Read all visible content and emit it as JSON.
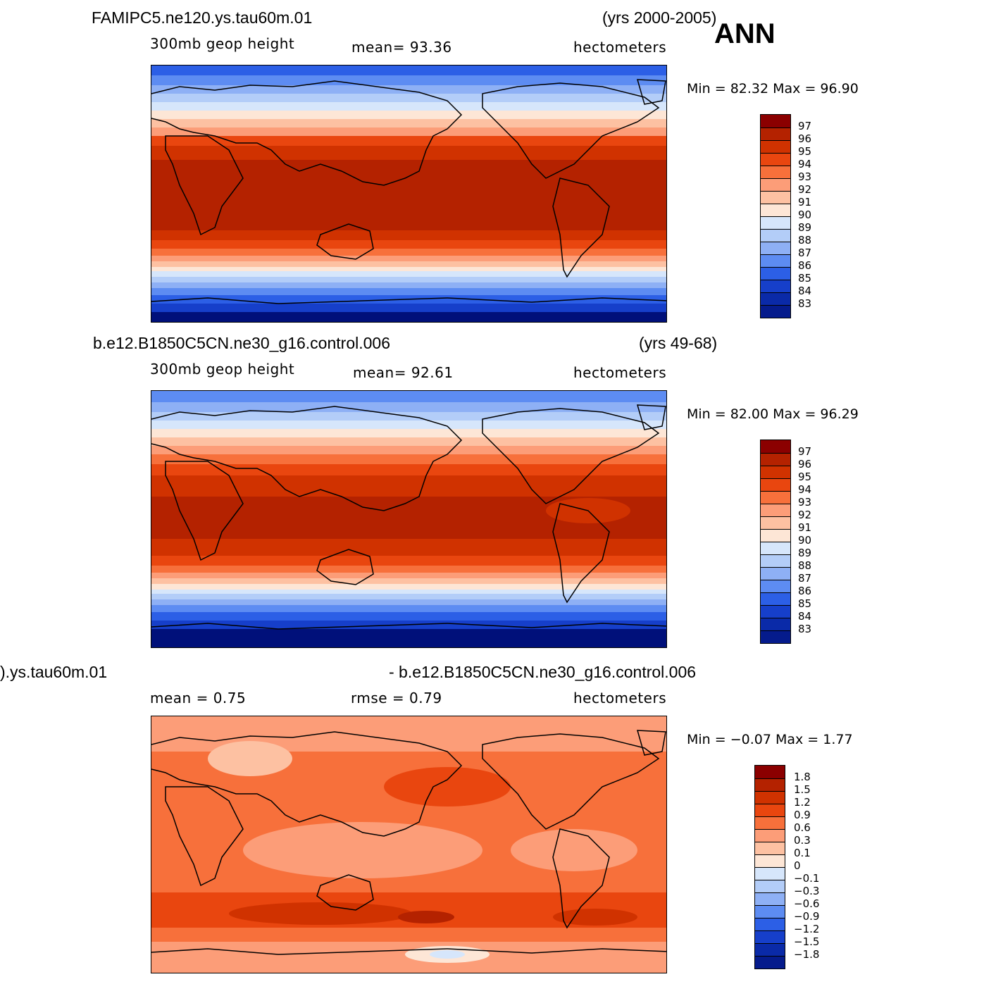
{
  "season": "ANN",
  "panels": [
    {
      "case": "FAMIPC5.ne120.ys.tau60m.01",
      "years": "(yrs 2000-2005)",
      "variable": "300mb  geop  height",
      "mean_label": "mean=   93.36",
      "units": "hectometers",
      "minmax": "Min =   82.32  Max =   96.90",
      "colorbar_labels": [
        "97",
        "96",
        "95",
        "94",
        "93",
        "92",
        "91",
        "90",
        "89",
        "88",
        "87",
        "86",
        "85",
        "84",
        "83"
      ]
    },
    {
      "case": "b.e12.B1850C5CN.ne30_g16.control.006",
      "years": "(yrs 49-68)",
      "variable": "300mb  geop  height",
      "mean_label": "mean=   92.61",
      "units": "hectometers",
      "minmax": "Min =   82.00  Max =   96.29",
      "colorbar_labels": [
        "97",
        "96",
        "95",
        "94",
        "93",
        "92",
        "91",
        "90",
        "89",
        "88",
        "87",
        "86",
        "85",
        "84",
        "83"
      ]
    },
    {
      "case_left": ").ys.tau60m.01",
      "case_right": "- b.e12.B1850C5CN.ne30_g16.control.006",
      "mean_label": "mean =     0.75",
      "rmse_label": "rmse =     0.79",
      "units": "hectometers",
      "minmax": "Min =   −0.07  Max =     1.77",
      "colorbar_labels": [
        "1.8",
        "1.5",
        "1.2",
        "0.9",
        "0.6",
        "0.3",
        "0.1",
        "0",
        "−0.1",
        "−0.3",
        "−0.6",
        "−0.9",
        "−1.2",
        "−1.5",
        "−1.8"
      ]
    }
  ],
  "colors": {
    "scale": [
      "#8b0000",
      "#b42200",
      "#d03200",
      "#e9460f",
      "#f7703b",
      "#fc9d78",
      "#fdc1a2",
      "#fde6d6",
      "#d6e6fb",
      "#b3cdf8",
      "#8eb0f5",
      "#5d8cf2",
      "#2c5fe6",
      "#163fca",
      "#0a2aa8",
      "#051b8c",
      "#00107a"
    ],
    "coastline": "#000000"
  }
}
